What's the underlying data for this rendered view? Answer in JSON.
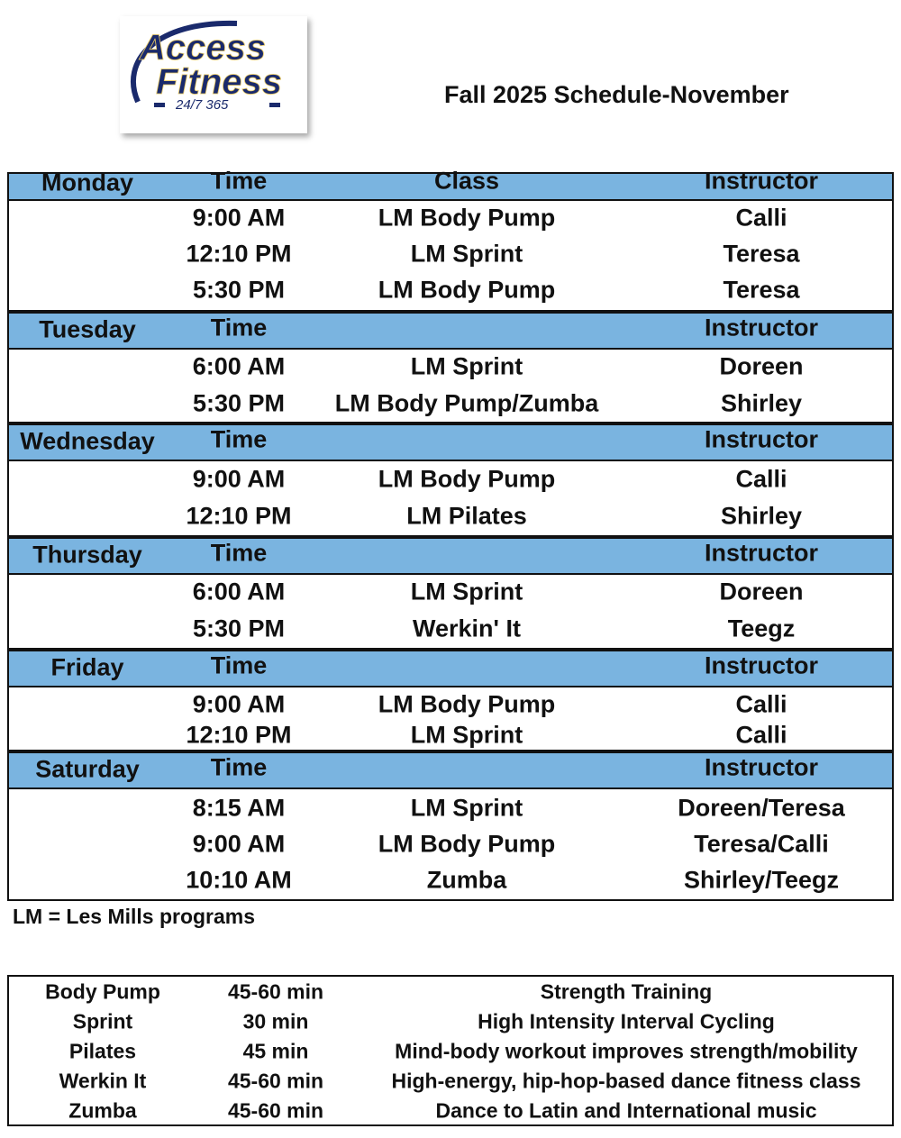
{
  "logo": {
    "text_line1": "Access",
    "text_line2": "Fitness",
    "tagline": "24/7 365"
  },
  "title": "Fall 2025 Schedule-November",
  "header_color": "#7ab4e0",
  "days": [
    {
      "day": "Monday",
      "time_label": "Time",
      "class_label": "Class",
      "instructor_label": "Instructor",
      "sessions": [
        {
          "time": "9:00 AM",
          "class": "LM Body Pump",
          "instructor": "Calli"
        },
        {
          "time": "12:10 PM",
          "class": "LM Sprint",
          "instructor": "Teresa"
        },
        {
          "time": "5:30 PM",
          "class": "LM Body Pump",
          "instructor": "Teresa"
        }
      ]
    },
    {
      "day": "Tuesday",
      "time_label": "Time",
      "class_label": "",
      "instructor_label": "Instructor",
      "sessions": [
        {
          "time": "6:00 AM",
          "class": "LM Sprint",
          "instructor": "Doreen"
        },
        {
          "time": "5:30 PM",
          "class": "LM Body Pump/Zumba",
          "instructor": "Shirley"
        }
      ]
    },
    {
      "day": "Wednesday",
      "time_label": "Time",
      "class_label": "",
      "instructor_label": "Instructor",
      "sessions": [
        {
          "time": "9:00 AM",
          "class": "LM Body Pump",
          "instructor": "Calli"
        },
        {
          "time": "12:10 PM",
          "class": "LM Pilates",
          "instructor": "Shirley"
        }
      ]
    },
    {
      "day": "Thursday",
      "time_label": "Time",
      "class_label": "",
      "instructor_label": "Instructor",
      "sessions": [
        {
          "time": "6:00 AM",
          "class": "LM Sprint",
          "instructor": "Doreen"
        },
        {
          "time": "5:30 PM",
          "class": "Werkin' It",
          "instructor": "Teegz"
        }
      ]
    },
    {
      "day": "Friday",
      "time_label": "Time",
      "class_label": "",
      "instructor_label": "Instructor",
      "sessions": [
        {
          "time": "9:00 AM",
          "class": "LM Body Pump",
          "instructor": "Calli"
        },
        {
          "time": "12:10 PM",
          "class": "LM Sprint",
          "instructor": "Calli"
        }
      ]
    },
    {
      "day": "Saturday",
      "time_label": "Time",
      "class_label": "",
      "instructor_label": "Instructor",
      "sessions": [
        {
          "time": "8:15 AM",
          "class": "LM Sprint",
          "instructor": "Doreen/Teresa"
        },
        {
          "time": "9:00 AM",
          "class": "LM Body Pump",
          "instructor": "Teresa/Calli"
        },
        {
          "time": "10:10 AM",
          "class": "Zumba",
          "instructor": "Shirley/Teegz"
        }
      ]
    }
  ],
  "footnote": "LM = Les Mills programs",
  "programs": [
    {
      "name": "Body Pump",
      "duration": "45-60 min",
      "description": "Strength Training"
    },
    {
      "name": "Sprint",
      "duration": "30 min",
      "description": "High Intensity Interval Cycling"
    },
    {
      "name": "Pilates",
      "duration": "45 min",
      "description": "Mind-body workout improves strength/mobility"
    },
    {
      "name": "Werkin It",
      "duration": "45-60 min",
      "description": "High-energy, hip-hop-based dance fitness class"
    },
    {
      "name": "Zumba",
      "duration": "45-60 min",
      "description": "Dance to Latin and International music"
    }
  ]
}
